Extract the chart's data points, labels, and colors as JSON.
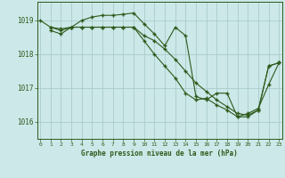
{
  "title": "Graphe pression niveau de la mer (hPa)",
  "bg_color": "#cce8e8",
  "grid_color": "#aacccc",
  "line_color": "#2d5a1b",
  "ylim": [
    1015.5,
    1019.55
  ],
  "xlim": [
    -0.3,
    23.3
  ],
  "yticks": [
    1016,
    1017,
    1018,
    1019
  ],
  "xticks": [
    0,
    1,
    2,
    3,
    4,
    5,
    6,
    7,
    8,
    9,
    10,
    11,
    12,
    13,
    14,
    15,
    16,
    17,
    18,
    19,
    20,
    21,
    22,
    23
  ],
  "series1": {
    "x": [
      0,
      1,
      2,
      3,
      4,
      5,
      6,
      7,
      8,
      9,
      10,
      11,
      12,
      13,
      14,
      15,
      16,
      17,
      18,
      19,
      20,
      21,
      22,
      23
    ],
    "y": [
      1019.0,
      1018.8,
      1018.75,
      1018.8,
      1019.0,
      1019.1,
      1019.15,
      1019.15,
      1019.18,
      1019.22,
      1018.9,
      1018.6,
      1018.25,
      1018.8,
      1018.55,
      1016.75,
      1016.65,
      1016.85,
      1016.85,
      1016.15,
      1016.15,
      1016.35,
      1017.65,
      1017.75
    ]
  },
  "series2": {
    "x": [
      1,
      2,
      3,
      4,
      5,
      6,
      7,
      8,
      9,
      10,
      11,
      12,
      13,
      14,
      15,
      16,
      17,
      18,
      19,
      20,
      21,
      22,
      23
    ],
    "y": [
      1018.8,
      1018.7,
      1018.8,
      1018.8,
      1018.8,
      1018.8,
      1018.8,
      1018.8,
      1018.8,
      1018.55,
      1018.4,
      1018.15,
      1017.85,
      1017.5,
      1017.15,
      1016.9,
      1016.65,
      1016.45,
      1016.25,
      1016.2,
      1016.35,
      1017.65,
      1017.75
    ]
  },
  "series3": {
    "x": [
      1,
      2,
      3,
      4,
      5,
      6,
      7,
      8,
      9,
      10,
      11,
      12,
      13,
      14,
      15,
      16,
      17,
      18,
      19,
      20,
      21,
      22,
      23
    ],
    "y": [
      1018.7,
      1018.6,
      1018.8,
      1018.8,
      1018.8,
      1018.8,
      1018.8,
      1018.8,
      1018.8,
      1018.4,
      1018.0,
      1017.65,
      1017.3,
      1016.85,
      1016.65,
      1016.7,
      1016.5,
      1016.35,
      1016.15,
      1016.25,
      1016.4,
      1017.1,
      1017.75
    ]
  }
}
